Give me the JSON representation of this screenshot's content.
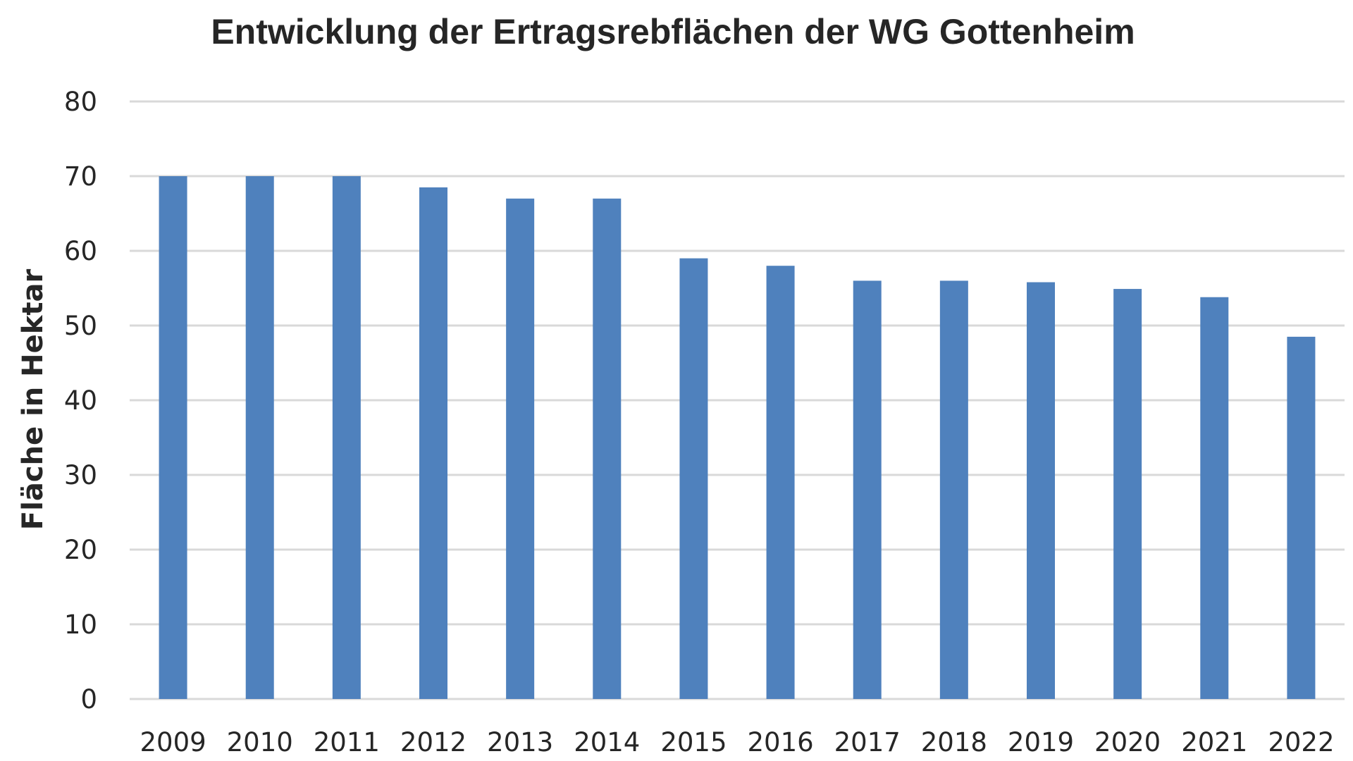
{
  "chart_data": {
    "type": "bar",
    "title": "Entwicklung der Ertragsrebflächen der WG Gottenheim",
    "xlabel": "",
    "ylabel": "Fläche in Hektar",
    "categories": [
      "2009",
      "2010",
      "2011",
      "2012",
      "2013",
      "2014",
      "2015",
      "2016",
      "2017",
      "2018",
      "2019",
      "2020",
      "2021",
      "2022"
    ],
    "values": [
      70,
      70,
      70,
      68.5,
      67,
      67,
      59,
      58,
      56,
      56,
      55.8,
      54.9,
      53.8,
      48.5
    ],
    "ylim": [
      0,
      80
    ],
    "yticks": [
      "0",
      "10",
      "20",
      "30",
      "40",
      "50",
      "60",
      "70",
      "80"
    ],
    "grid": true,
    "legend": "none",
    "colors": {
      "bar": "#4f81bd",
      "grid": "#d9d9d9",
      "text": "#262626"
    }
  }
}
